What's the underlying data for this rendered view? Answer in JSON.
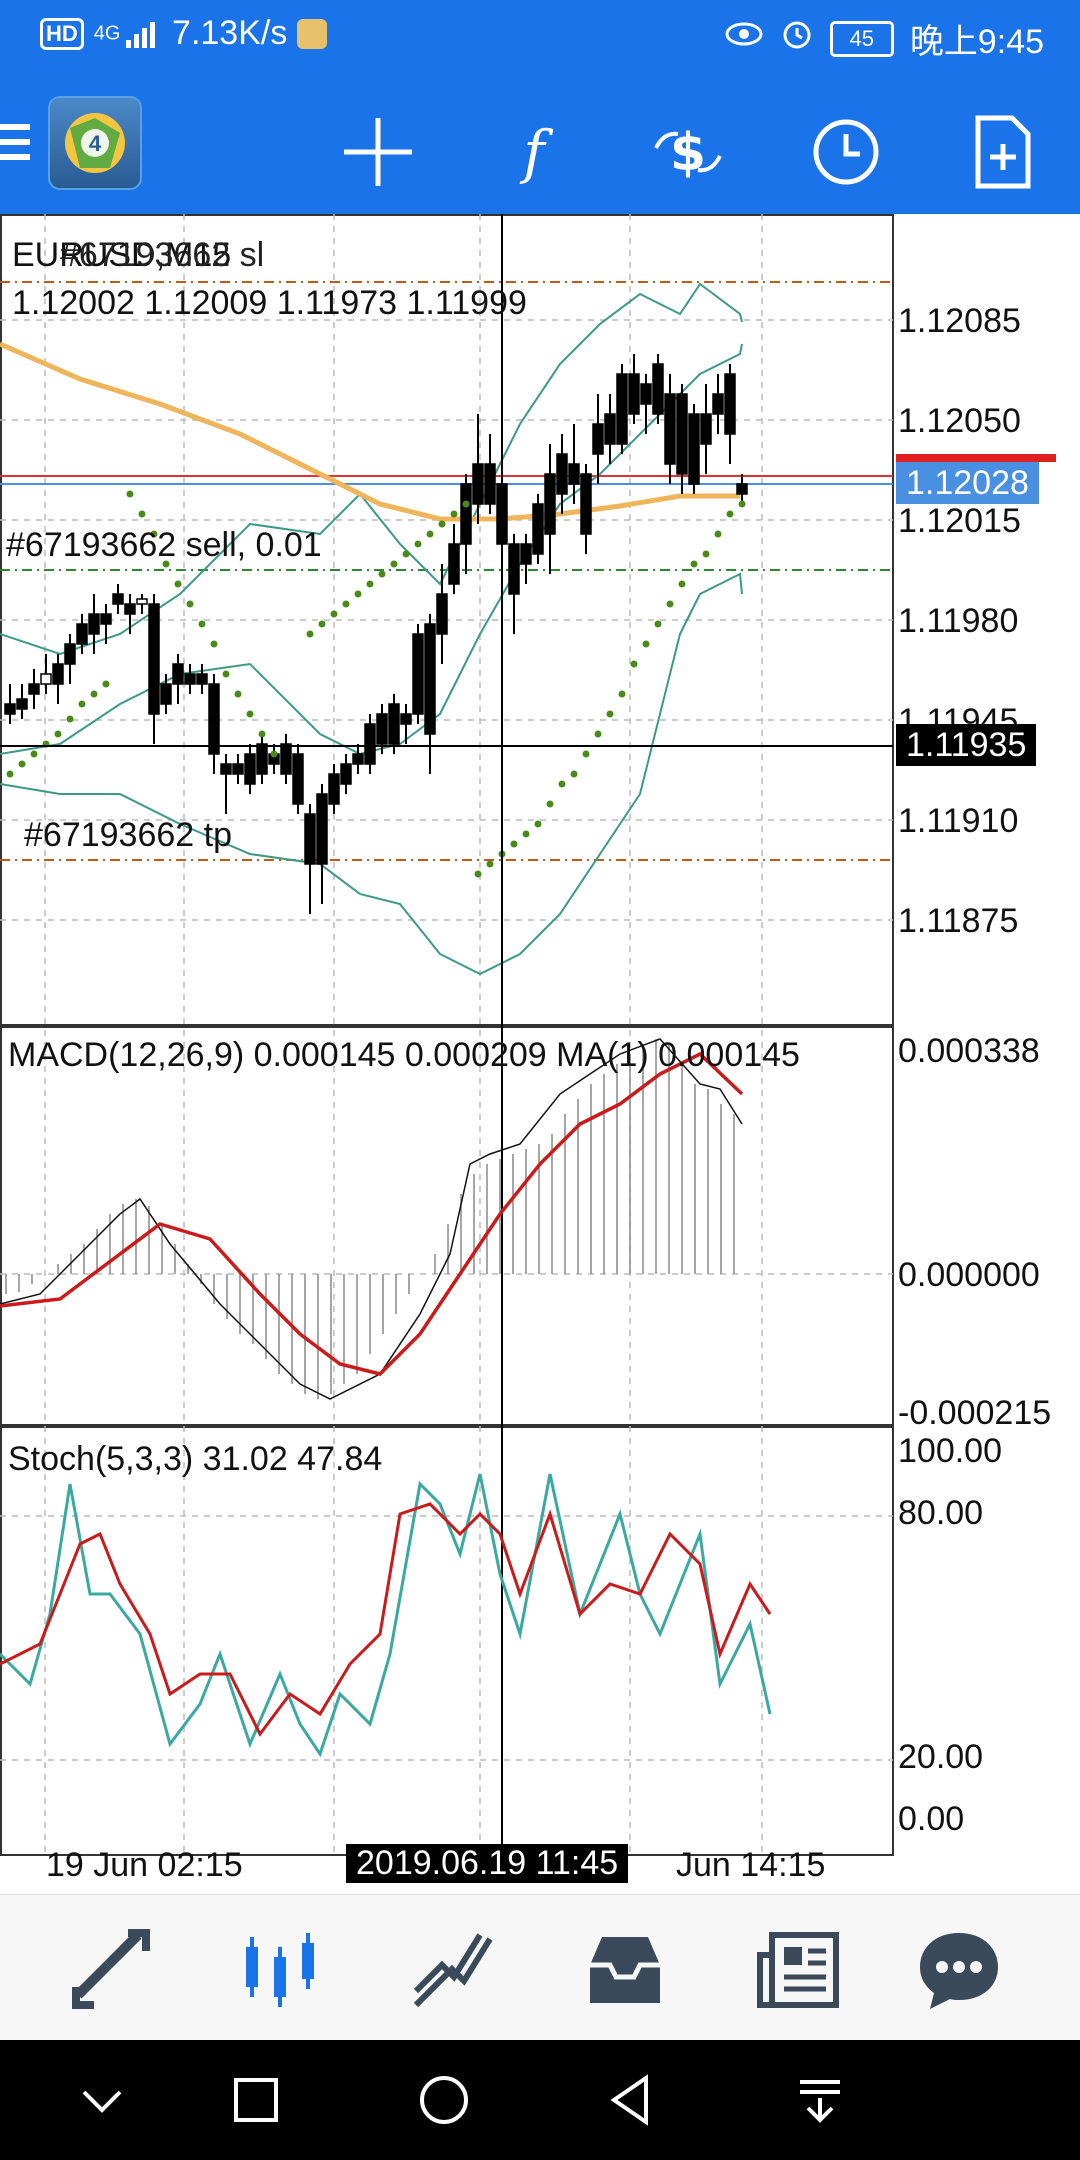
{
  "status": {
    "hd": "HD",
    "signal": "4G",
    "speed": "7.13K/s",
    "battery": "45",
    "time": "晚上9:45"
  },
  "toolbar": {
    "icons": [
      "menu-icon",
      "metatrader-logo",
      "crosshair-icon",
      "function-icon",
      "trade-icon",
      "clock-icon",
      "new-document-icon"
    ]
  },
  "chart": {
    "overlay_text": "EURUSD,M15",
    "overlay_text2": "#67193662 sl",
    "ohlc": "1.12002 1.12009 1.11973 1.11999",
    "sell_label": "#67193662 sell, 0.01",
    "tp_label": "#67193662 tp",
    "price_axis": [
      "1.12085",
      "1.12050",
      "1.12015",
      "1.11980",
      "1.11945",
      "1.11910",
      "1.11875"
    ],
    "bid_price": "1.12028",
    "crosshair_price": "1.11935",
    "colors": {
      "up": "#ffffff",
      "down": "#000000",
      "ma": "#f0b45a",
      "bb": "#3a9a86",
      "sar": "#4a8a1a",
      "bid": "#4a90e2"
    }
  },
  "macd": {
    "label": "MACD(12,26,9) 0.000145 0.000209 MA(1) 0.000145",
    "axis": [
      "0.000338",
      "0.000000",
      "-0.000215"
    ]
  },
  "stoch": {
    "label": "Stoch(5,3,3) 31.02 47.84",
    "axis": [
      "100.00",
      "80.00",
      "20.00",
      "0.00"
    ]
  },
  "time_axis": {
    "left": "19 Jun 02:15",
    "center": "2019.06.19 11:45",
    "right": "Jun 14:15"
  },
  "nav": {
    "items": [
      "quotes-icon",
      "chart-icon",
      "trade-icon",
      "history-icon",
      "news-icon",
      "chat-icon"
    ]
  }
}
